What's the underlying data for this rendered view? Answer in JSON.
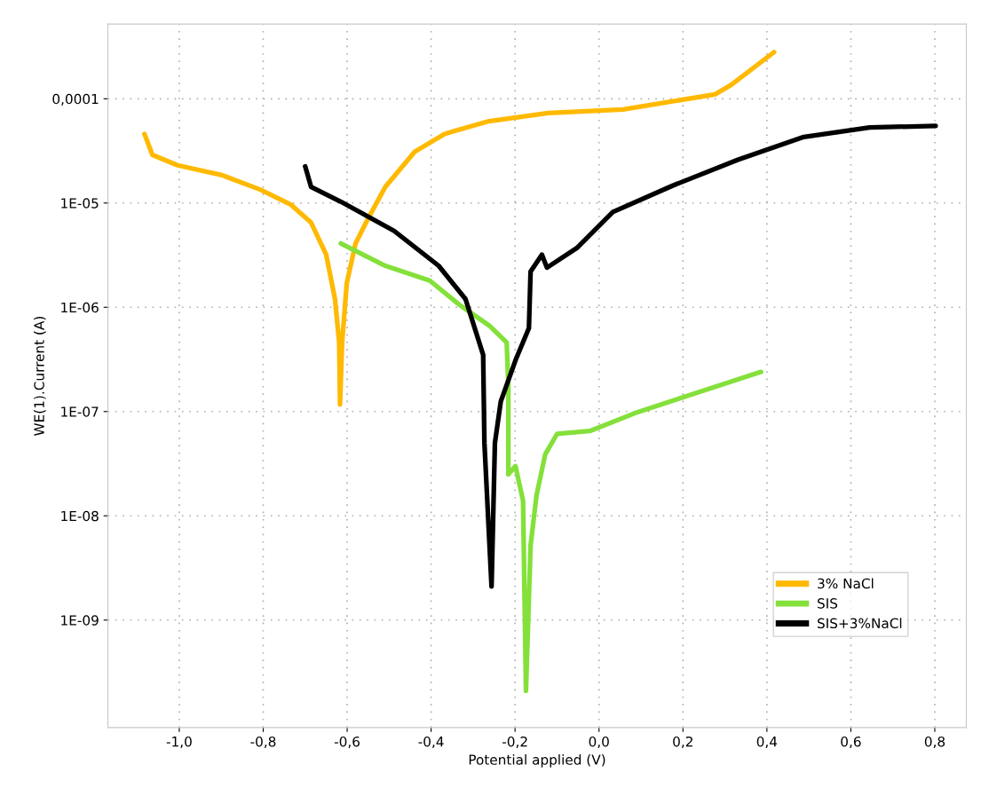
{
  "chart_data": {
    "type": "line",
    "xlabel": "Potential applied (V)",
    "ylabel": "WE(1).Current (A)",
    "log": "y",
    "grid": true,
    "legend": "bottom right",
    "marker": "none",
    "line_style": "solid",
    "xlim": [
      -1.17,
      0.875
    ],
    "ylim": [
      9.3e-11,
      0.00052
    ],
    "xticks": [
      {
        "value": -1.0,
        "label": "-1,0"
      },
      {
        "value": -0.8,
        "label": "-0,8"
      },
      {
        "value": -0.6,
        "label": "-0,6"
      },
      {
        "value": -0.4,
        "label": "-0,4"
      },
      {
        "value": -0.2,
        "label": "-0,2"
      },
      {
        "value": 0.0,
        "label": "0,0"
      },
      {
        "value": 0.2,
        "label": "0,2"
      },
      {
        "value": 0.4,
        "label": "0,4"
      },
      {
        "value": 0.6,
        "label": "0,6"
      },
      {
        "value": 0.8,
        "label": "0,8"
      }
    ],
    "yticks": [
      {
        "value": 1e-09,
        "label": "1E-09"
      },
      {
        "value": 1e-08,
        "label": "1E-08"
      },
      {
        "value": 1e-07,
        "label": "1E-07"
      },
      {
        "value": 1e-06,
        "label": "1E-06"
      },
      {
        "value": 1e-05,
        "label": "1E-05"
      },
      {
        "value": 0.0001,
        "label": "0,0001"
      }
    ],
    "series": [
      {
        "name": "3% NaCl",
        "color": "#ffb900",
        "x": [
          -1.083,
          -1.064,
          -1.004,
          -0.898,
          -0.806,
          -0.735,
          -0.686,
          -0.65,
          -0.629,
          -0.619,
          -0.617,
          -0.612,
          -0.601,
          -0.58,
          -0.551,
          -0.509,
          -0.439,
          -0.368,
          -0.262,
          -0.121,
          0.057,
          0.276,
          0.315,
          0.417
        ],
        "values": [
          4.6e-05,
          2.9e-05,
          2.3e-05,
          1.85e-05,
          1.34e-05,
          9.7e-06,
          6.5e-06,
          3.2e-06,
          1.2e-06,
          4.6e-07,
          1.17e-07,
          4.6e-07,
          1.7e-06,
          4.1e-06,
          7e-06,
          1.43e-05,
          3.1e-05,
          4.6e-05,
          6.1e-05,
          7.3e-05,
          7.9e-05,
          0.00011,
          0.000136,
          0.00028
        ]
      },
      {
        "name": "SIS",
        "color": "#84e03a",
        "x": [
          -0.615,
          -0.509,
          -0.403,
          -0.333,
          -0.262,
          -0.22,
          -0.216,
          -0.216,
          -0.199,
          -0.181,
          -0.174,
          -0.163,
          -0.149,
          -0.128,
          -0.1,
          -0.022,
          0.084,
          0.19,
          0.386
        ],
        "values": [
          4.1e-06,
          2.5e-06,
          1.8e-06,
          1.06e-06,
          6.7e-07,
          4.6e-07,
          1.8e-07,
          2.5e-08,
          3e-08,
          1.4e-08,
          2.1e-10,
          5.2e-09,
          1.56e-08,
          3.9e-08,
          6.1e-08,
          6.5e-08,
          9.6e-08,
          1.33e-07,
          2.4e-07
        ]
      },
      {
        "name": "SIS+3%NaCl",
        "color": "#000000",
        "x": [
          -0.7,
          -0.686,
          -0.615,
          -0.488,
          -0.382,
          -0.318,
          -0.276,
          -0.273,
          -0.256,
          -0.248,
          -0.234,
          -0.199,
          -0.167,
          -0.163,
          -0.136,
          -0.124,
          -0.053,
          0.033,
          0.174,
          0.331,
          0.488,
          0.645,
          0.802
        ],
        "values": [
          2.25e-05,
          1.43e-05,
          1.03e-05,
          5.4e-06,
          2.5e-06,
          1.2e-06,
          3.5e-07,
          5e-08,
          2.1e-09,
          5e-08,
          1.25e-07,
          3.1e-07,
          6.3e-07,
          2.2e-06,
          3.2e-06,
          2.4e-06,
          3.7e-06,
          8.2e-06,
          1.46e-05,
          2.6e-05,
          4.3e-05,
          5.3e-05,
          5.5e-05
        ]
      }
    ]
  }
}
